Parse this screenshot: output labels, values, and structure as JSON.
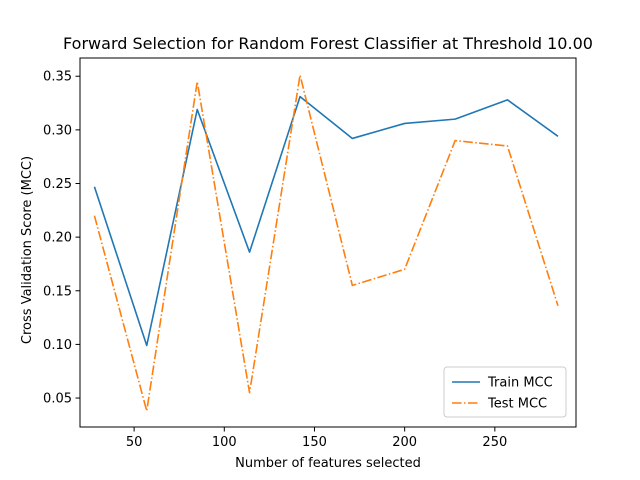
{
  "chart_data": {
    "type": "line",
    "title": "Forward Selection for Random Forest Classifier at Threshold 10.00",
    "xlabel": "Number of features selected",
    "ylabel": "Cross Validation Score (MCC)",
    "xlim": [
      20,
      295
    ],
    "ylim": [
      0.023,
      0.367
    ],
    "xticks": [
      50,
      100,
      150,
      200,
      250
    ],
    "yticks": [
      0.05,
      0.1,
      0.15,
      0.2,
      0.25,
      0.3,
      0.35
    ],
    "grid": false,
    "legend_position": "bottom-right",
    "x": [
      28,
      57,
      85,
      114,
      142,
      171,
      200,
      228,
      257,
      285
    ],
    "series": [
      {
        "name": "Train MCC",
        "color": "#1f77b4",
        "line_style": "solid",
        "values": [
          0.247,
          0.099,
          0.319,
          0.186,
          0.331,
          0.292,
          0.306,
          0.31,
          0.328,
          0.294
        ]
      },
      {
        "name": "Test MCC",
        "color": "#ff7f0e",
        "line_style": "dashdot",
        "values": [
          0.22,
          0.038,
          0.345,
          0.055,
          0.351,
          0.155,
          0.17,
          0.29,
          0.285,
          0.136
        ]
      }
    ]
  }
}
